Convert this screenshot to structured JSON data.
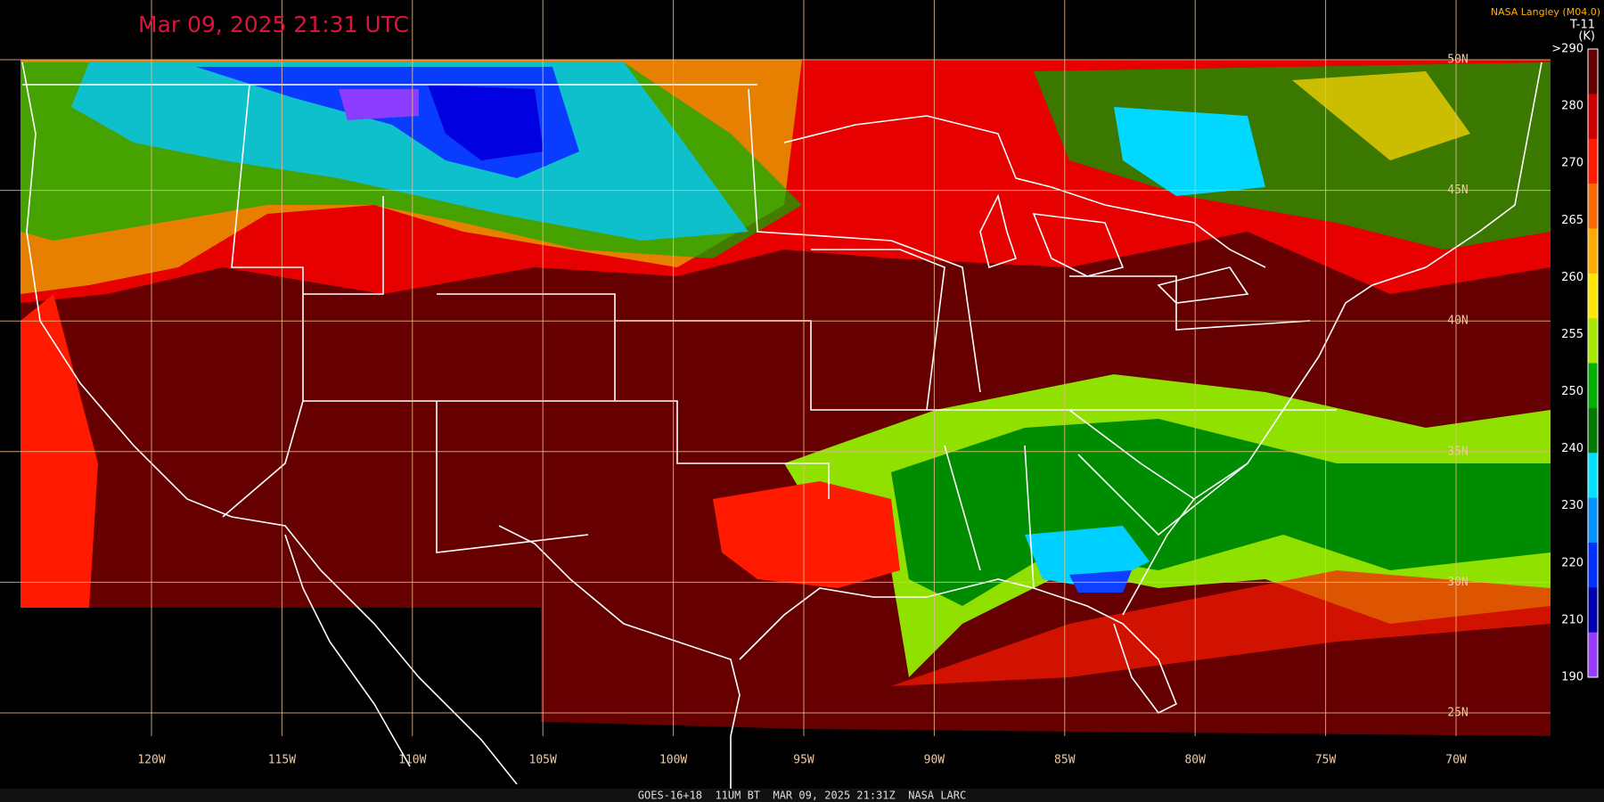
{
  "header": {
    "timestamp": "Mar 09, 2025 21:31 UTC",
    "credit": "NASA Langley (M04.0)",
    "product": "T-11",
    "units": "(K)"
  },
  "colorbar": {
    "labels": [
      ">290",
      "280",
      "270",
      "265",
      "260",
      "255",
      "250",
      "240",
      "230",
      "220",
      "210",
      "190"
    ]
  },
  "longitudes": [
    "120W",
    "115W",
    "110W",
    "105W",
    "100W",
    "95W",
    "90W",
    "85W",
    "80W",
    "75W",
    "70W"
  ],
  "latitudes": [
    "50N",
    "45N",
    "40N",
    "35N",
    "30N",
    "25N"
  ],
  "footer": "GOES-16+18  11UM BT  MAR 09, 2025 21:31Z  NASA LARC"
}
